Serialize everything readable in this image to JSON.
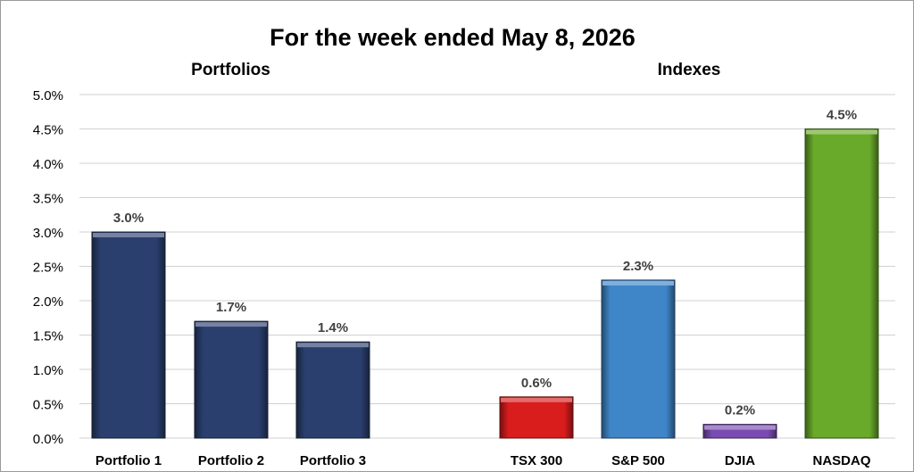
{
  "chart_data": {
    "type": "bar",
    "title": "For the week ended May 8, 2026",
    "groups": [
      {
        "label": "Portfolios",
        "categories": [
          "Portfolio 1",
          "Portfolio 2",
          "Portfolio 3"
        ]
      },
      {
        "label": "Indexes",
        "categories": [
          "TSX 300",
          "S&P 500",
          "DJIA",
          "NASDAQ"
        ]
      }
    ],
    "categories": [
      "Portfolio 1",
      "Portfolio 2",
      "Portfolio 3",
      "",
      "TSX 300",
      "S&P 500",
      "DJIA",
      "NASDAQ"
    ],
    "values": [
      3.0,
      1.7,
      1.4,
      null,
      0.6,
      2.3,
      0.2,
      4.5
    ],
    "data_labels": [
      "3.0%",
      "1.7%",
      "1.4%",
      "",
      "0.6%",
      "2.3%",
      "0.2%",
      "4.5%"
    ],
    "colors": [
      "#2a3f6e",
      "#2a3f6e",
      "#2a3f6e",
      "",
      "#d91c1c",
      "#3f86c9",
      "#7a4cb3",
      "#6aaa2a"
    ],
    "ylim": [
      0,
      5.0
    ],
    "yticks": [
      0.0,
      0.5,
      1.0,
      1.5,
      2.0,
      2.5,
      3.0,
      3.5,
      4.0,
      4.5,
      5.0
    ],
    "ytick_labels": [
      "0.0%",
      "0.5%",
      "1.0%",
      "1.5%",
      "2.0%",
      "2.5%",
      "3.0%",
      "3.5%",
      "4.0%",
      "4.5%",
      "5.0%"
    ],
    "xlabel": "",
    "ylabel": "",
    "grid": true,
    "legend": "none"
  }
}
